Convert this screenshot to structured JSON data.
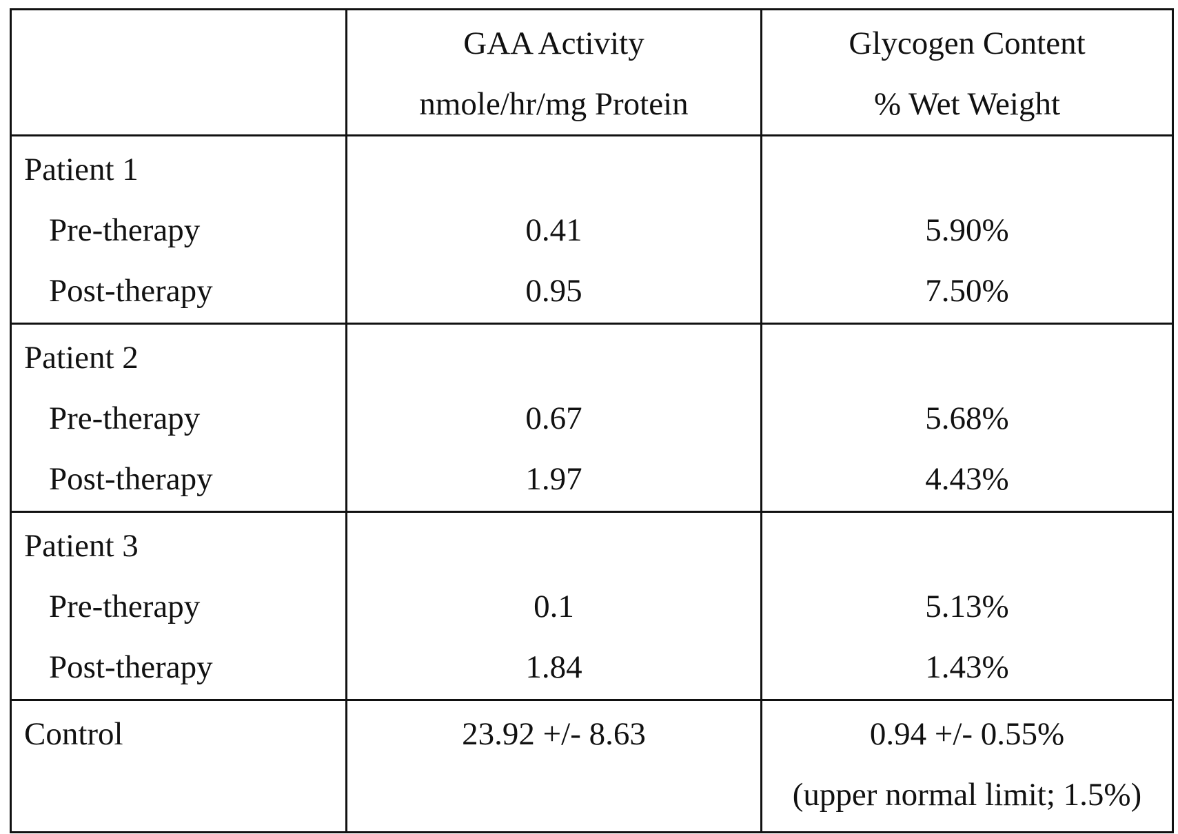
{
  "table": {
    "columns": [
      {
        "title": "",
        "unit": ""
      },
      {
        "title": "GAA Activity",
        "unit": "nmole/hr/mg Protein"
      },
      {
        "title": "Glycogen Content",
        "unit": "% Wet Weight"
      }
    ],
    "patients": [
      {
        "label": "Patient 1",
        "rows": [
          {
            "phase": "Pre-therapy",
            "gaa": "0.41",
            "glycogen": "5.90%"
          },
          {
            "phase": "Post-therapy",
            "gaa": "0.95",
            "glycogen": "7.50%"
          }
        ]
      },
      {
        "label": "Patient 2",
        "rows": [
          {
            "phase": "Pre-therapy",
            "gaa": "0.67",
            "glycogen": "5.68%"
          },
          {
            "phase": "Post-therapy",
            "gaa": "1.97",
            "glycogen": "4.43%"
          }
        ]
      },
      {
        "label": "Patient 3",
        "rows": [
          {
            "phase": "Pre-therapy",
            "gaa": "0.1",
            "glycogen": "5.13%"
          },
          {
            "phase": "Post-therapy",
            "gaa": "1.84",
            "glycogen": "1.43%"
          }
        ]
      }
    ],
    "control": {
      "label": "Control",
      "gaa": "23.92 +/- 8.63",
      "glycogen": "0.94 +/- 0.55%",
      "glycogen_note": "(upper normal limit; 1.5%)"
    }
  }
}
